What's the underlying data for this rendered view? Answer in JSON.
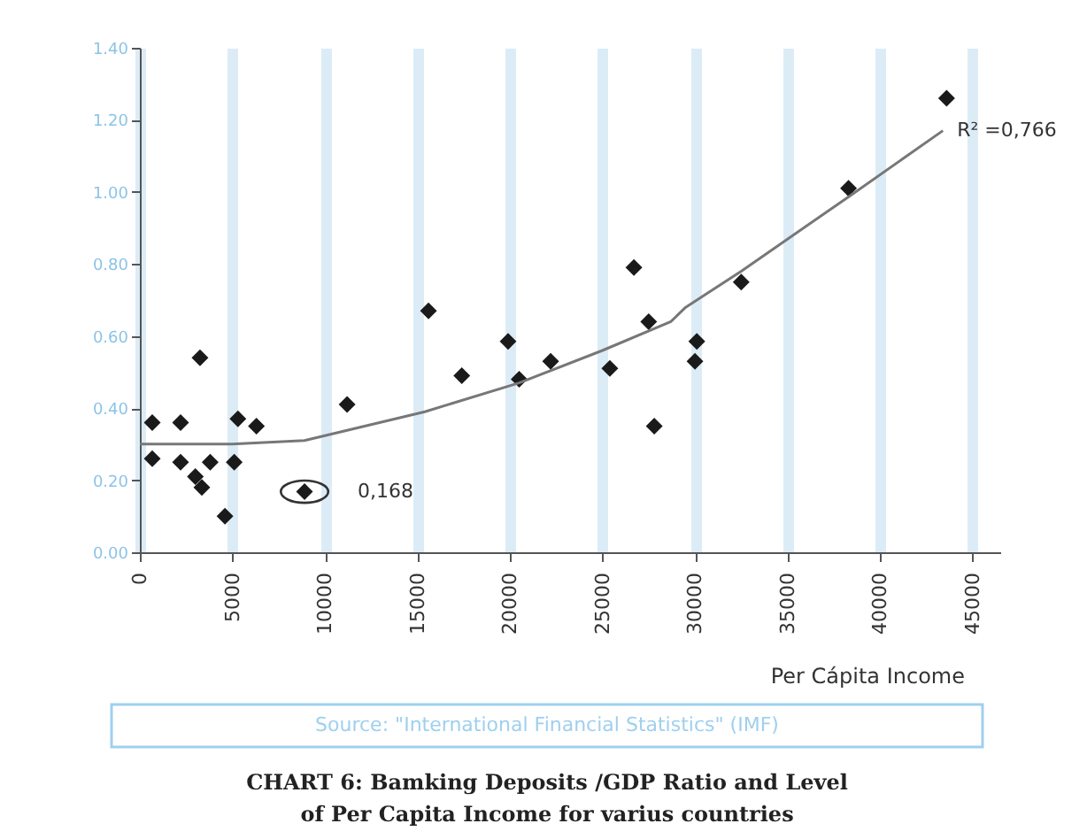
{
  "chart_data": {
    "type": "scatter",
    "title": "CHART 6: Bamking Deposits /GDP Ratio and Level\nof Per Capita Income for varius countries",
    "xlabel": "Per Cápita Income",
    "x": [
      670,
      670,
      2200,
      2200,
      3000,
      3350,
      3250,
      3800,
      4600,
      5100,
      5300,
      6300,
      8900,
      11200,
      15600,
      17400,
      19900,
      20500,
      22200,
      25400,
      26700,
      27500,
      27800,
      30100,
      30000,
      32500,
      38300,
      43600
    ],
    "series": [
      {
        "color": "#1a1a1a",
        "marker": "diamond",
        "values": [
          0.36,
          0.26,
          0.36,
          0.25,
          0.21,
          0.18,
          0.54,
          0.25,
          0.1,
          0.25,
          0.37,
          0.35,
          0.168,
          0.41,
          0.67,
          0.49,
          0.585,
          0.48,
          0.53,
          0.51,
          0.79,
          0.64,
          0.35,
          0.585,
          0.53,
          0.75,
          1.01,
          1.26
        ]
      },
      {
        "type": "line",
        "color": "#777777",
        "marker": "none",
        "x": [
          0,
          5000,
          8900,
          15400,
          20500,
          25000,
          28700,
          29500,
          30400,
          32500,
          38400,
          43400
        ],
        "values": [
          0.3,
          0.3,
          0.31,
          0.39,
          0.47,
          0.56,
          0.64,
          0.68,
          0.71,
          0.78,
          0.99,
          1.17
        ]
      }
    ],
    "annotations": [
      {
        "text": "R² =0,766",
        "x": 43400,
        "y": 1.17
      },
      {
        "text": "0,168",
        "x": 8900,
        "y": 0.168
      },
      "Source: \"International Financial Statistics\" (IMF)"
    ],
    "xlim": [
      0,
      46500
    ],
    "ylim": [
      0,
      1.4
    ],
    "xticks": [
      0,
      5000,
      10000,
      15000,
      20000,
      25000,
      30000,
      35000,
      40000,
      45000
    ],
    "yticks": [
      {
        "value": 0,
        "label": "0.00"
      },
      {
        "value": 0.2,
        "label": "0.20"
      },
      {
        "value": 0.4,
        "label": "0.40"
      },
      {
        "value": 0.6,
        "label": "0.60"
      },
      {
        "value": 0.8,
        "label": "0.80"
      },
      {
        "value": 1.0,
        "label": "1.00"
      },
      {
        "value": 1.2,
        "label": "1.20"
      },
      {
        "value": 1.4,
        "label": "1.40"
      }
    ],
    "grid": "x"
  }
}
